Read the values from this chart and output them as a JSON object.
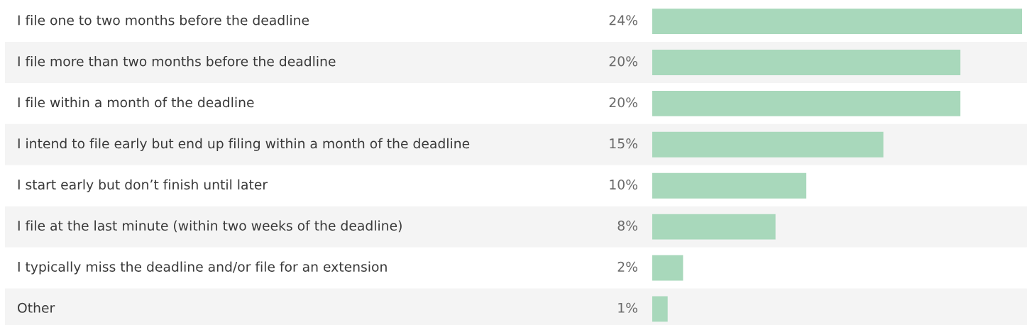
{
  "chart_data": {
    "type": "bar",
    "orientation": "horizontal",
    "categories": [
      "I file one to two months before the deadline",
      "I file more than two months before the deadline",
      "I file within a month of the deadline",
      "I intend to file early but end up filing within a month of the deadline",
      "I start early but don’t finish until later",
      "I file at the last minute (within two weeks of the deadline)",
      "I typically miss the deadline and/or file for an extension",
      "Other"
    ],
    "values": [
      24,
      20,
      20,
      15,
      10,
      8,
      2,
      1
    ],
    "value_labels": [
      "24%",
      "20%",
      "20%",
      "15%",
      "10%",
      "8%",
      "2%",
      "1%"
    ],
    "color": "#a8d8bb"
  }
}
